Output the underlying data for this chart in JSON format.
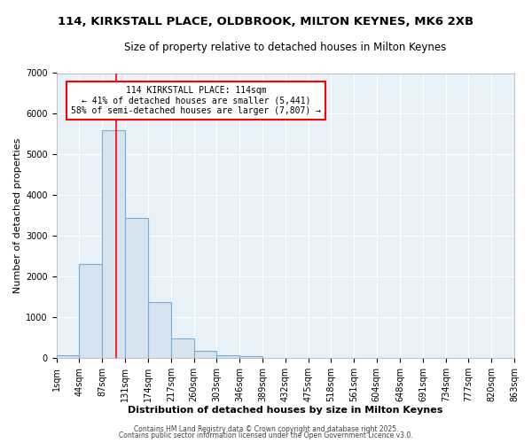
{
  "title_line1": "114, KIRKSTALL PLACE, OLDBROOK, MILTON KEYNES, MK6 2XB",
  "title_line2": "Size of property relative to detached houses in Milton Keynes",
  "xlabel": "Distribution of detached houses by size in Milton Keynes",
  "ylabel": "Number of detached properties",
  "bin_edges": [
    1,
    44,
    87,
    131,
    174,
    217,
    260,
    303,
    346,
    389,
    432,
    475,
    518,
    561,
    604,
    648,
    691,
    734,
    777,
    820,
    863
  ],
  "bar_heights": [
    75,
    2300,
    5600,
    3450,
    1370,
    480,
    175,
    75,
    50,
    0,
    0,
    0,
    0,
    0,
    0,
    0,
    0,
    0,
    0,
    0
  ],
  "bar_color": "#d6e4f0",
  "bar_edgecolor": "#7aadd4",
  "bar_linewidth": 0.8,
  "vline_x": 114,
  "vline_color": "red",
  "vline_linewidth": 1.2,
  "ylim": [
    0,
    7000
  ],
  "yticks": [
    0,
    1000,
    2000,
    3000,
    4000,
    5000,
    6000,
    7000
  ],
  "tick_labels": [
    "1sqm",
    "44sqm",
    "87sqm",
    "131sqm",
    "174sqm",
    "217sqm",
    "260sqm",
    "303sqm",
    "346sqm",
    "389sqm",
    "432sqm",
    "475sqm",
    "518sqm",
    "561sqm",
    "604sqm",
    "648sqm",
    "691sqm",
    "734sqm",
    "777sqm",
    "820sqm",
    "863sqm"
  ],
  "annotation_title": "114 KIRKSTALL PLACE: 114sqm",
  "annotation_line2": "← 41% of detached houses are smaller (5,441)",
  "annotation_line3": "58% of semi-detached houses are larger (7,807) →",
  "bg_color": "#ffffff",
  "plot_bg_color": "#e8f0f8",
  "grid_color": "#ffffff",
  "footer_line1": "Contains HM Land Registry data © Crown copyright and database right 2025.",
  "footer_line2": "Contains public sector information licensed under the Open Government Licence v3.0.",
  "title_fontsize": 9.5,
  "subtitle_fontsize": 8.5,
  "axis_label_fontsize": 8,
  "tick_fontsize": 7,
  "footer_fontsize": 5.5
}
